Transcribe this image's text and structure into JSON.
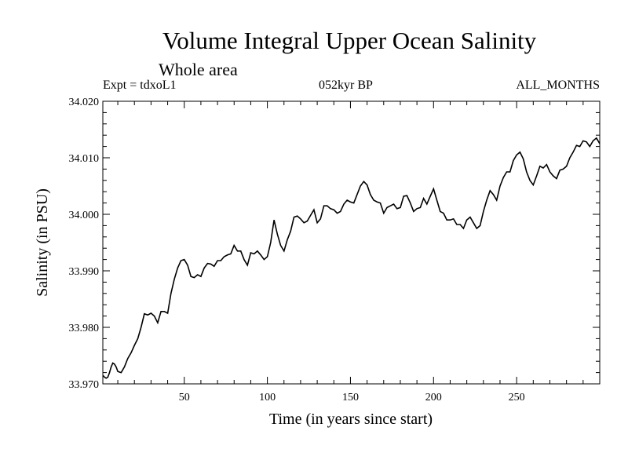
{
  "header": {
    "title": "Volume Integral Upper Ocean Salinity",
    "subtitle": "Whole area",
    "left": "Expt = tdxoL1",
    "center": "052kyr BP",
    "right": "ALL_MONTHS"
  },
  "chart_data": {
    "type": "line",
    "title": "Volume Integral Upper Ocean Salinity",
    "subtitle": "Whole area",
    "xlabel": "Time (in years since start)",
    "ylabel": "Salinity (in PSU)",
    "xlim": [
      1,
      300
    ],
    "ylim": [
      33.97,
      34.02
    ],
    "x_ticks": [
      50,
      100,
      150,
      200,
      250
    ],
    "y_ticks": [
      33.97,
      33.98,
      33.99,
      34.0,
      34.01,
      34.02
    ],
    "y_tick_labels": [
      "33.970",
      "33.980",
      "33.990",
      "34.000",
      "34.010",
      "34.020"
    ],
    "grid": false,
    "series": [
      {
        "name": "salinity",
        "x": [
          1,
          2,
          3,
          4,
          5,
          6,
          7,
          8,
          9,
          10,
          12,
          14,
          16,
          18,
          20,
          22,
          24,
          26,
          28,
          30,
          32,
          34,
          36,
          38,
          40,
          42,
          44,
          46,
          48,
          50,
          52,
          54,
          56,
          58,
          60,
          62,
          64,
          66,
          68,
          70,
          72,
          74,
          76,
          78,
          80,
          82,
          84,
          86,
          88,
          90,
          92,
          94,
          96,
          98,
          100,
          102,
          104,
          106,
          108,
          110,
          112,
          114,
          116,
          118,
          120,
          122,
          124,
          126,
          128,
          130,
          132,
          134,
          136,
          138,
          140,
          142,
          144,
          146,
          148,
          150,
          152,
          154,
          156,
          158,
          160,
          162,
          164,
          166,
          168,
          170,
          172,
          174,
          176,
          178,
          180,
          182,
          184,
          186,
          188,
          190,
          192,
          194,
          196,
          198,
          200,
          202,
          204,
          206,
          208,
          210,
          212,
          214,
          216,
          218,
          220,
          222,
          224,
          226,
          228,
          230,
          232,
          234,
          236,
          238,
          240,
          242,
          244,
          246,
          248,
          250,
          252,
          254,
          256,
          258,
          260,
          262,
          264,
          266,
          268,
          270,
          272,
          274,
          276,
          278,
          280,
          282,
          284,
          286,
          288,
          290,
          292,
          294,
          296,
          298,
          300
        ],
        "values": [
          33.9715,
          33.9712,
          33.971,
          33.9712,
          33.972,
          33.973,
          33.9737,
          33.9735,
          33.973,
          33.9722,
          33.972,
          33.973,
          33.9745,
          33.9755,
          33.9768,
          33.978,
          33.98,
          33.9824,
          33.9822,
          33.9825,
          33.982,
          33.9808,
          33.9828,
          33.9828,
          33.9825,
          33.986,
          33.9885,
          33.9905,
          33.9918,
          33.992,
          33.991,
          33.989,
          33.9888,
          33.9893,
          33.989,
          33.9905,
          33.9913,
          33.9912,
          33.9908,
          33.9918,
          33.9918,
          33.9925,
          33.9928,
          33.993,
          33.9945,
          33.9935,
          33.9935,
          33.992,
          33.991,
          33.9932,
          33.993,
          33.9935,
          33.9928,
          33.992,
          33.9925,
          33.995,
          33.999,
          33.9965,
          33.9945,
          33.9935,
          33.9955,
          33.997,
          33.9995,
          33.9997,
          33.9992,
          33.9985,
          33.9988,
          33.9998,
          34.0008,
          33.9985,
          33.9992,
          34.0015,
          34.0015,
          34.001,
          34.0008,
          34.0002,
          34.0005,
          34.0018,
          34.0025,
          34.0022,
          34.002,
          34.0035,
          34.005,
          34.0058,
          34.0052,
          34.0035,
          34.0025,
          34.0022,
          34.002,
          34.0002,
          34.0012,
          34.0015,
          34.0018,
          34.001,
          34.0012,
          34.0032,
          34.0033,
          34.002,
          34.0005,
          34.001,
          34.0012,
          34.0028,
          34.0018,
          34.0032,
          34.0045,
          34.0025,
          34.0005,
          34.0002,
          33.999,
          33.999,
          33.9992,
          33.9982,
          33.9982,
          33.9975,
          33.999,
          33.9995,
          33.9985,
          33.9975,
          33.998,
          34.0005,
          34.0025,
          34.0042,
          34.0035,
          34.0025,
          34.005,
          34.0065,
          34.0075,
          34.0075,
          34.0095,
          34.0105,
          34.011,
          34.0098,
          34.0075,
          34.006,
          34.0052,
          34.0068,
          34.0085,
          34.0082,
          34.0088,
          34.0075,
          34.0068,
          34.0063,
          34.0078,
          34.008,
          34.0085,
          34.01,
          34.011,
          34.0122,
          34.012,
          34.013,
          34.0128,
          34.012,
          34.013,
          34.0135,
          34.0125
        ]
      }
    ]
  }
}
